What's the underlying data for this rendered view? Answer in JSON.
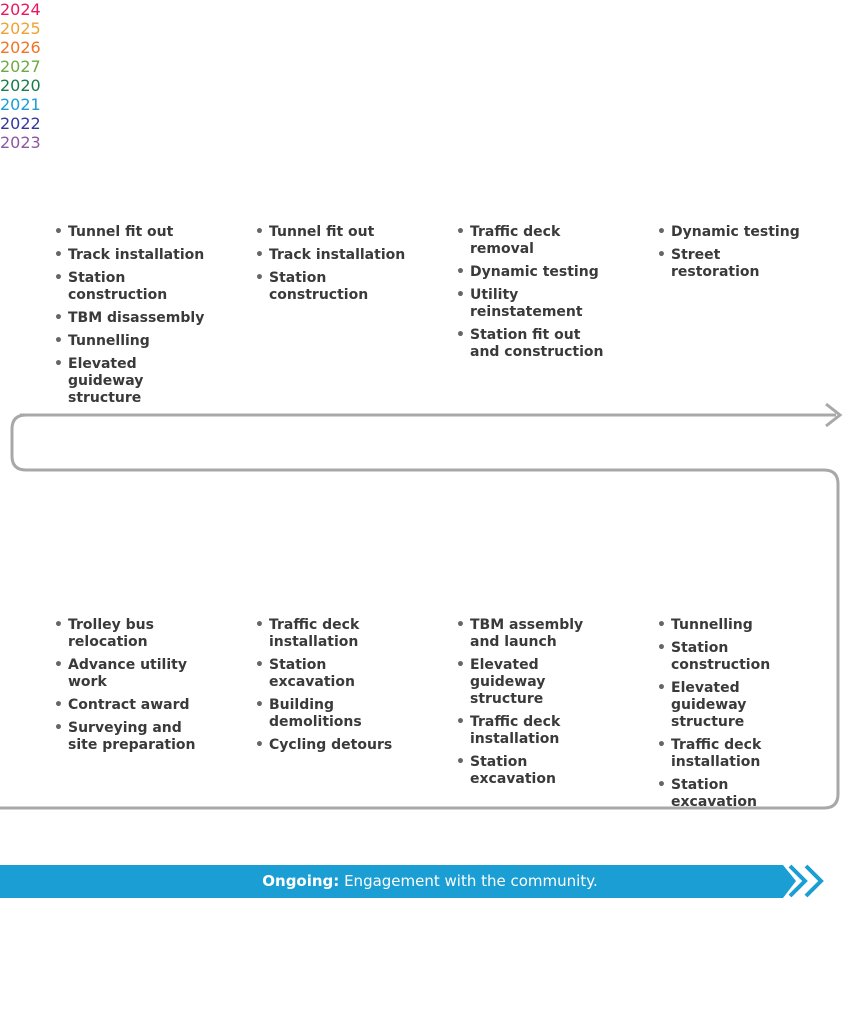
{
  "cards": [
    {
      "year": "2024",
      "color": "#e8185e",
      "items": [
        "Tunnel fit out",
        "Track installation",
        "Station construction",
        "TBM disassembly",
        "Tunnelling",
        "Elevated guideway structure"
      ]
    },
    {
      "year": "2025",
      "color": "#f0a133",
      "items": [
        "Tunnel fit out",
        "Track installation",
        "Station construction"
      ]
    },
    {
      "year": "2026",
      "color": "#f07326",
      "items": [
        "Traffic deck removal",
        "Dynamic testing",
        "Utility reinstatement",
        "Station fit out and construction"
      ]
    },
    {
      "year": "2027",
      "color": "#6aac42",
      "items": [
        "Dynamic testing",
        "Street restoration"
      ]
    },
    {
      "year": "2020",
      "color": "#187c48",
      "items": [
        "Trolley bus relocation",
        "Advance utility work",
        "Contract award",
        "Surveying and site preparation"
      ]
    },
    {
      "year": "2021",
      "color": "#1a9ed3",
      "items": [
        "Traffic deck installation",
        "Station excavation",
        "Building demolitions",
        "Cycling detours"
      ]
    },
    {
      "year": "2022",
      "color": "#34389b",
      "items": [
        "TBM assembly and launch",
        "Elevated guideway structure",
        "Traffic deck installation",
        "Station excavation"
      ]
    },
    {
      "year": "2023",
      "color": "#8d55a3",
      "items": [
        "Tunnelling",
        "Station construction",
        "Elevated guideway structure",
        "Traffic deck installation",
        "Station excavation"
      ]
    }
  ],
  "footer": {
    "label": "Ongoing:",
    "text": "Engagement with the community."
  }
}
